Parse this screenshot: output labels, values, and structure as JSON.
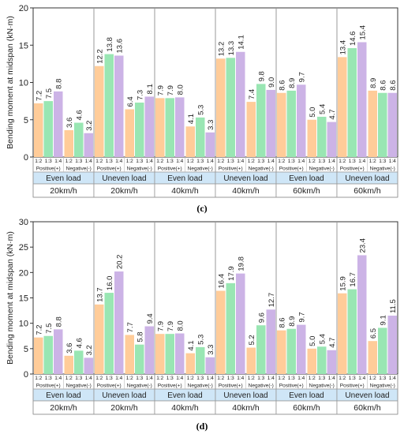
{
  "chart_data": [
    {
      "type": "bar",
      "caption": "(c)",
      "ylabel": "Bending moment at midspan (kN·m)",
      "ylim": [
        0,
        20
      ],
      "yticks": [
        0,
        5,
        10,
        15,
        20
      ],
      "grid": "vertical separators between groups",
      "ratio_labels": [
        "1:2",
        "1:3",
        "1:4"
      ],
      "series_colors": [
        "#FFCC99",
        "#99E6B3",
        "#CCB3E6"
      ],
      "groups": [
        {
          "load": "Even load",
          "speed": "20km/h",
          "positive": {
            "label": "Positive(+)",
            "values": [
              7.2,
              7.5,
              8.8
            ]
          },
          "negative": {
            "label": "Negative(-)",
            "values": [
              3.6,
              4.6,
              3.2
            ]
          }
        },
        {
          "load": "Uneven load",
          "speed": "20km/h",
          "positive": {
            "label": "Positive(+)",
            "values": [
              12.2,
              13.8,
              13.6
            ]
          },
          "negative": {
            "label": "Negative(-)",
            "values": [
              6.4,
              7.3,
              8.1
            ]
          }
        },
        {
          "load": "Even load",
          "speed": "40km/h",
          "positive": {
            "label": "Positive(+)",
            "values": [
              7.9,
              7.9,
              8.0
            ]
          },
          "negative": {
            "label": "Negative(-)",
            "values": [
              4.1,
              5.3,
              3.3
            ]
          }
        },
        {
          "load": "Uneven load",
          "speed": "40km/h",
          "positive": {
            "label": "Positive(+)",
            "values": [
              13.2,
              13.3,
              14.1
            ]
          },
          "negative": {
            "label": "Negative(-)",
            "values": [
              7.4,
              9.8,
              9.0
            ]
          }
        },
        {
          "load": "Even load",
          "speed": "60km/h",
          "positive": {
            "label": "Positive(+)",
            "values": [
              8.6,
              8.9,
              9.7
            ]
          },
          "negative": {
            "label": "Negative(-)",
            "values": [
              5.0,
              5.4,
              4.7
            ]
          }
        },
        {
          "load": "Uneven load",
          "speed": "60km/h",
          "positive": {
            "label": "Positive(+)",
            "values": [
              13.4,
              14.6,
              15.4
            ]
          },
          "negative": {
            "label": "Negative(-)",
            "values": [
              8.9,
              8.6,
              8.6
            ]
          }
        }
      ]
    },
    {
      "type": "bar",
      "caption": "(d)",
      "ylabel": "Bending moment at midspan (kN·m)",
      "ylim": [
        0,
        30
      ],
      "yticks": [
        0,
        5,
        10,
        15,
        20,
        25,
        30
      ],
      "grid": "vertical separators between groups",
      "ratio_labels": [
        "1:2",
        "1:3",
        "1:4"
      ],
      "series_colors": [
        "#FFCC99",
        "#99E6B3",
        "#CCB3E6"
      ],
      "groups": [
        {
          "load": "Even load",
          "speed": "20km/h",
          "positive": {
            "label": "Positive(+)",
            "values": [
              7.2,
              7.5,
              8.8
            ]
          },
          "negative": {
            "label": "Negative(-)",
            "values": [
              3.6,
              4.6,
              3.2
            ]
          }
        },
        {
          "load": "Uneven load",
          "speed": "20km/h",
          "positive": {
            "label": "Positive(+)",
            "values": [
              13.7,
              16.0,
              20.2
            ]
          },
          "negative": {
            "label": "Negative(-)",
            "values": [
              7.7,
              5.8,
              9.4
            ]
          }
        },
        {
          "load": "Even load",
          "speed": "40km/h",
          "positive": {
            "label": "Positive(+)",
            "values": [
              7.9,
              7.9,
              8.0
            ]
          },
          "negative": {
            "label": "Negative(-)",
            "values": [
              4.1,
              5.3,
              3.3
            ]
          }
        },
        {
          "load": "Uneven load",
          "speed": "40km/h",
          "positive": {
            "label": "Positive(+)",
            "values": [
              16.4,
              17.9,
              19.8
            ]
          },
          "negative": {
            "label": "Negative(-)",
            "values": [
              5.2,
              9.6,
              12.7
            ]
          }
        },
        {
          "load": "Even load",
          "speed": "60km/h",
          "positive": {
            "label": "Positive(+)",
            "values": [
              8.6,
              8.9,
              9.7
            ]
          },
          "negative": {
            "label": "Negative(-)",
            "values": [
              5.0,
              5.4,
              4.7
            ]
          }
        },
        {
          "load": "Uneven load",
          "speed": "60km/h",
          "positive": {
            "label": "Positive(+)",
            "values": [
              15.9,
              16.7,
              23.4
            ]
          },
          "negative": {
            "label": "Negative(-)",
            "values": [
              6.5,
              9.1,
              11.5
            ]
          }
        }
      ]
    }
  ],
  "theme": {
    "load_row_color": "#CFE6F7",
    "axis_color": "#333333",
    "separator_color": "#999999"
  }
}
